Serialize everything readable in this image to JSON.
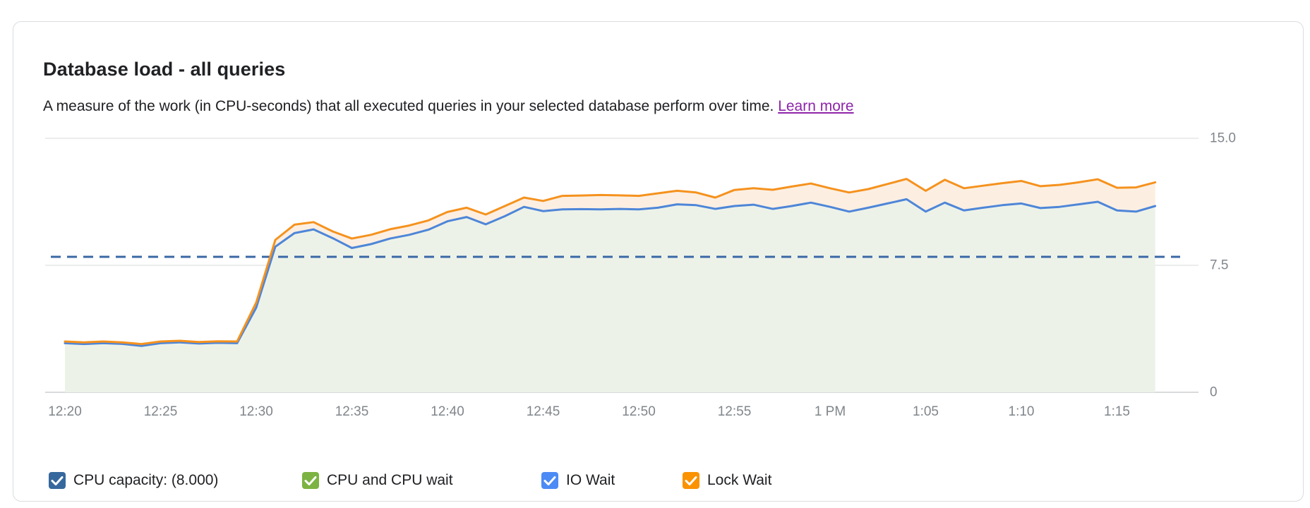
{
  "card": {
    "title": "Database load - all queries",
    "subtitle_text": "A measure of the work (in CPU-seconds) that all executed queries in your selected database perform over time.",
    "learn_more_label": "Learn more"
  },
  "chart_data": {
    "type": "area",
    "title": "Database load - all queries",
    "ylabel": "CPU-seconds",
    "ylim": [
      0,
      15
    ],
    "grid": true,
    "legend_position": "bottom",
    "x_axis": {
      "start_label": "12:20",
      "minutes_per_point": 1,
      "tick_labels": [
        "12:20",
        "12:25",
        "12:30",
        "12:35",
        "12:40",
        "12:45",
        "12:50",
        "12:55",
        "1 PM",
        "1:05",
        "1:10",
        "1:15"
      ],
      "tick_minutes": [
        0,
        5,
        10,
        15,
        20,
        25,
        30,
        35,
        40,
        45,
        50,
        55
      ]
    },
    "y_axis": {
      "side": "right",
      "ticks": [
        {
          "label": "15.0",
          "value": 15
        },
        {
          "label": "7.5",
          "value": 7.5
        },
        {
          "label": "0",
          "value": 0
        }
      ]
    },
    "reference_line": {
      "name": "CPU capacity",
      "value": 8.0,
      "color": "#3a68a6",
      "style": "dashed"
    },
    "series": [
      {
        "name": "IO Wait",
        "line_color": "#4e86d8",
        "area_color": "#edf2e9",
        "values": [
          2.9,
          2.85,
          2.9,
          2.86,
          2.74,
          2.9,
          2.95,
          2.88,
          2.92,
          2.9,
          5.0,
          8.6,
          9.4,
          9.62,
          9.1,
          8.52,
          8.75,
          9.08,
          9.3,
          9.6,
          10.1,
          10.35,
          9.92,
          10.4,
          10.95,
          10.7,
          10.8,
          10.82,
          10.8,
          10.83,
          10.8,
          10.9,
          11.1,
          11.05,
          10.83,
          11.0,
          11.08,
          10.83,
          11.0,
          11.2,
          10.95,
          10.67,
          10.9,
          11.15,
          11.4,
          10.67,
          11.2,
          10.74,
          10.9,
          11.05,
          11.15,
          10.88,
          10.95,
          11.1,
          11.25,
          10.74,
          10.67,
          11.0
        ]
      },
      {
        "name": "Lock Wait",
        "line_color": "#f5921e",
        "area_color": "#fcefe2",
        "band_above": "IO Wait",
        "values": [
          3.0,
          2.95,
          3.0,
          2.95,
          2.85,
          3.0,
          3.04,
          2.97,
          3.01,
          3.0,
          5.3,
          9.0,
          9.9,
          10.05,
          9.5,
          9.08,
          9.3,
          9.63,
          9.85,
          10.15,
          10.65,
          10.9,
          10.5,
          11.0,
          11.5,
          11.3,
          11.6,
          11.62,
          11.65,
          11.63,
          11.6,
          11.75,
          11.9,
          11.8,
          11.5,
          11.95,
          12.05,
          11.96,
          12.15,
          12.33,
          12.05,
          11.8,
          12.0,
          12.3,
          12.6,
          11.9,
          12.55,
          12.05,
          12.2,
          12.35,
          12.48,
          12.17,
          12.25,
          12.4,
          12.58,
          12.08,
          12.1,
          12.4
        ]
      }
    ]
  },
  "legend": {
    "items": [
      {
        "label": "CPU capacity: (8.000)",
        "color": "#36689d",
        "checked": true
      },
      {
        "label": "CPU and CPU wait",
        "color": "#7cb342",
        "checked": true
      },
      {
        "label": "IO Wait",
        "color": "#4c8bf5",
        "checked": true
      },
      {
        "label": "Lock Wait",
        "color": "#fb9200",
        "checked": true
      }
    ]
  }
}
